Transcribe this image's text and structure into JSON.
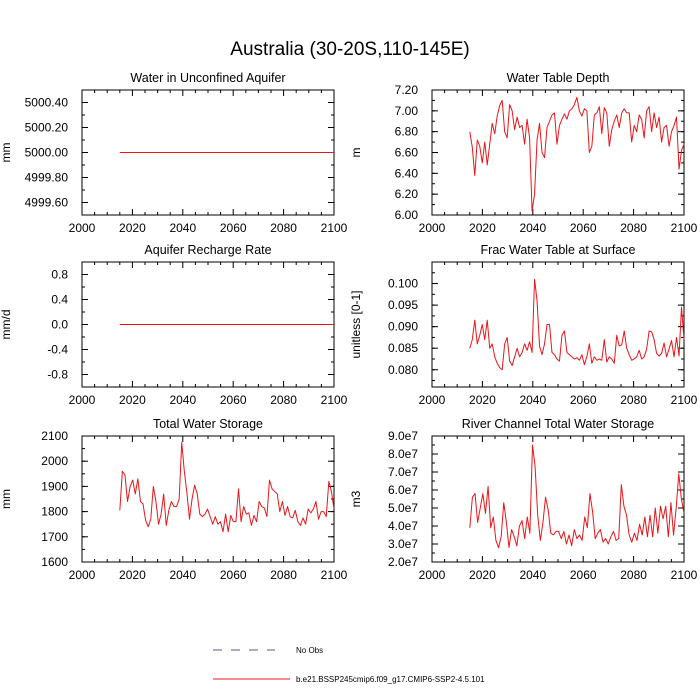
{
  "page_title": "Australia (30-20S,110-145E)",
  "colors": {
    "model": "#e8161b",
    "obs": "#6a4c9c",
    "axis": "#000000"
  },
  "legend": {
    "obs_label": "No Obs",
    "model_label": "b.e21.BSSP245cmip6.f09_g17.CMIP6-SSP2-4.5.101"
  },
  "chart_data": [
    {
      "type": "line",
      "title": "Water in Unconfined Aquifer",
      "ylabel": "mm",
      "xlim": [
        2000,
        2100
      ],
      "ylim": [
        4999.5,
        5000.5
      ],
      "xticks": [
        "2000",
        "2020",
        "2040",
        "2060",
        "2080",
        "2100"
      ],
      "yticks": [
        {
          "v": 4999.6,
          "t": "4999.60"
        },
        {
          "v": 4999.8,
          "t": "4999.80"
        },
        {
          "v": 5000.0,
          "t": "5000.00"
        },
        {
          "v": 5000.2,
          "t": "5000.20"
        },
        {
          "v": 5000.4,
          "t": "5000.40"
        }
      ],
      "series": [
        {
          "start": 2015,
          "values": [
            5000,
            5000,
            5000,
            5000,
            5000,
            5000,
            5000,
            5000,
            5000,
            5000,
            5000,
            5000,
            5000,
            5000,
            5000,
            5000,
            5000,
            5000,
            5000,
            5000,
            5000,
            5000,
            5000,
            5000,
            5000,
            5000,
            5000,
            5000,
            5000,
            5000,
            5000,
            5000,
            5000,
            5000,
            5000,
            5000,
            5000,
            5000,
            5000,
            5000,
            5000,
            5000,
            5000,
            5000,
            5000,
            5000,
            5000,
            5000,
            5000,
            5000,
            5000,
            5000,
            5000,
            5000,
            5000,
            5000,
            5000,
            5000,
            5000,
            5000,
            5000,
            5000,
            5000,
            5000,
            5000,
            5000,
            5000,
            5000,
            5000,
            5000,
            5000,
            5000,
            5000,
            5000,
            5000,
            5000,
            5000,
            5000,
            5000,
            5000,
            5000,
            5000,
            5000,
            5000,
            5000,
            5000
          ]
        }
      ]
    },
    {
      "type": "line",
      "title": "Water Table Depth",
      "ylabel": "m",
      "xlim": [
        2000,
        2100
      ],
      "ylim": [
        6.0,
        7.2
      ],
      "xticks": [
        "2000",
        "2020",
        "2040",
        "2060",
        "2080",
        "2100"
      ],
      "yticks": [
        {
          "v": 6.0,
          "t": "6.00"
        },
        {
          "v": 6.2,
          "t": "6.20"
        },
        {
          "v": 6.4,
          "t": "6.40"
        },
        {
          "v": 6.6,
          "t": "6.60"
        },
        {
          "v": 6.8,
          "t": "6.80"
        },
        {
          "v": 7.0,
          "t": "7.00"
        },
        {
          "v": 7.2,
          "t": "7.20"
        }
      ],
      "series": [
        {
          "start": 2015,
          "values": [
            6.8,
            6.65,
            6.38,
            6.72,
            6.66,
            6.5,
            6.7,
            6.48,
            6.68,
            6.88,
            6.78,
            6.95,
            7.05,
            7.1,
            6.8,
            6.74,
            7.06,
            7.0,
            6.82,
            6.94,
            6.84,
            6.86,
            6.68,
            6.92,
            6.74,
            6.04,
            6.2,
            6.72,
            6.88,
            6.6,
            6.55,
            6.84,
            6.9,
            6.96,
            6.98,
            6.68,
            6.86,
            6.92,
            6.97,
            6.92,
            7.0,
            7.02,
            7.06,
            7.13,
            7.0,
            6.95,
            7.02,
            7.0,
            6.6,
            6.66,
            6.96,
            6.98,
            7.04,
            6.78,
            7.03,
            6.98,
            6.66,
            6.82,
            6.9,
            6.96,
            6.84,
            6.98,
            7.02,
            6.98,
            6.98,
            6.7,
            6.86,
            6.8,
            6.96,
            6.92,
            6.74,
            7.0,
            7.04,
            6.8,
            6.98,
            6.84,
            6.94,
            6.7,
            6.84,
            6.86,
            6.66,
            6.8,
            6.86,
            6.94,
            6.44,
            6.62,
            6.68
          ]
        }
      ]
    },
    {
      "type": "line",
      "title": "Aquifer Recharge Rate",
      "ylabel": "mm/d",
      "xlim": [
        2000,
        2100
      ],
      "ylim": [
        -1.0,
        1.0
      ],
      "xticks": [
        "2000",
        "2020",
        "2040",
        "2060",
        "2080",
        "2100"
      ],
      "yticks": [
        {
          "v": -0.8,
          "t": "-0.8"
        },
        {
          "v": -0.4,
          "t": "-0.4"
        },
        {
          "v": 0.0,
          "t": "0.0"
        },
        {
          "v": 0.4,
          "t": "0.4"
        },
        {
          "v": 0.8,
          "t": "0.8"
        }
      ],
      "series": [
        {
          "start": 2015,
          "values": [
            0,
            0,
            0,
            0,
            0,
            0,
            0,
            0,
            0,
            0,
            0,
            0,
            0,
            0,
            0,
            0,
            0,
            0,
            0,
            0,
            0,
            0,
            0,
            0,
            0,
            0,
            0,
            0,
            0,
            0,
            0,
            0,
            0,
            0,
            0,
            0,
            0,
            0,
            0,
            0,
            0,
            0,
            0,
            0,
            0,
            0,
            0,
            0,
            0,
            0,
            0,
            0,
            0,
            0,
            0,
            0,
            0,
            0,
            0,
            0,
            0,
            0,
            0,
            0,
            0,
            0,
            0,
            0,
            0,
            0,
            0,
            0,
            0,
            0,
            0,
            0,
            0,
            0,
            0,
            0,
            0,
            0,
            0,
            0,
            0,
            0
          ]
        }
      ]
    },
    {
      "type": "line",
      "title": "Frac Water Table at Surface",
      "ylabel": "unitless [0-1]",
      "xlim": [
        2000,
        2100
      ],
      "ylim": [
        0.076,
        0.105
      ],
      "xticks": [
        "2000",
        "2020",
        "2040",
        "2060",
        "2080",
        "2100"
      ],
      "yticks": [
        {
          "v": 0.08,
          "t": "0.080"
        },
        {
          "v": 0.085,
          "t": "0.085"
        },
        {
          "v": 0.09,
          "t": "0.090"
        },
        {
          "v": 0.095,
          "t": "0.095"
        },
        {
          "v": 0.1,
          "t": "0.100"
        }
      ],
      "series": [
        {
          "start": 2015,
          "values": [
            0.085,
            0.087,
            0.0915,
            0.086,
            0.088,
            0.0905,
            0.087,
            0.0915,
            0.085,
            0.086,
            0.083,
            0.0815,
            0.0805,
            0.08,
            0.086,
            0.0875,
            0.082,
            0.081,
            0.083,
            0.085,
            0.083,
            0.084,
            0.086,
            0.0845,
            0.0865,
            0.084,
            0.101,
            0.096,
            0.0855,
            0.0835,
            0.086,
            0.0905,
            0.0905,
            0.084,
            0.0835,
            0.0825,
            0.082,
            0.088,
            0.089,
            0.084,
            0.0835,
            0.083,
            0.0825,
            0.0828,
            0.0822,
            0.0835,
            0.0812,
            0.083,
            0.086,
            0.0815,
            0.083,
            0.0822,
            0.0825,
            0.0822,
            0.087,
            0.0818,
            0.083,
            0.0825,
            0.0815,
            0.088,
            0.0855,
            0.0858,
            0.089,
            0.085,
            0.0835,
            0.0822,
            0.0825,
            0.083,
            0.0845,
            0.0825,
            0.083,
            0.0848,
            0.089,
            0.0888,
            0.087,
            0.0838,
            0.0832,
            0.0838,
            0.0862,
            0.083,
            0.0848,
            0.0868,
            0.083,
            0.0875,
            0.0832,
            0.0945,
            0.087
          ]
        }
      ]
    },
    {
      "type": "line",
      "title": "Total Water Storage",
      "ylabel": "mm",
      "xlim": [
        2000,
        2100
      ],
      "ylim": [
        1600,
        2100
      ],
      "xticks": [
        "2000",
        "2020",
        "2040",
        "2060",
        "2080",
        "2100"
      ],
      "yticks": [
        {
          "v": 1600,
          "t": "1600"
        },
        {
          "v": 1700,
          "t": "1700"
        },
        {
          "v": 1800,
          "t": "1800"
        },
        {
          "v": 1900,
          "t": "1900"
        },
        {
          "v": 2000,
          "t": "2000"
        },
        {
          "v": 2100,
          "t": "2100"
        }
      ],
      "series": [
        {
          "start": 2015,
          "values": [
            1805,
            1960,
            1945,
            1840,
            1900,
            1925,
            1870,
            1930,
            1840,
            1830,
            1765,
            1740,
            1770,
            1900,
            1840,
            1750,
            1790,
            1870,
            1745,
            1805,
            1840,
            1820,
            1820,
            1850,
            2075,
            1960,
            1875,
            1770,
            1850,
            1905,
            1870,
            1790,
            1780,
            1790,
            1810,
            1780,
            1750,
            1780,
            1750,
            1760,
            1720,
            1790,
            1720,
            1785,
            1760,
            1760,
            1890,
            1760,
            1820,
            1790,
            1795,
            1745,
            1785,
            1760,
            1840,
            1820,
            1815,
            1780,
            1925,
            1890,
            1880,
            1870,
            1800,
            1840,
            1785,
            1820,
            1780,
            1775,
            1805,
            1760,
            1745,
            1775,
            1750,
            1810,
            1795,
            1810,
            1840,
            1770,
            1800,
            1800,
            1780,
            1920,
            1880,
            1810
          ]
        }
      ]
    },
    {
      "type": "line",
      "title": "River Channel Total Water Storage",
      "ylabel": "m3",
      "xlim": [
        2000,
        2100
      ],
      "ylim": [
        20000000.0,
        90000000.0
      ],
      "xticks": [
        "2000",
        "2020",
        "2040",
        "2060",
        "2080",
        "2100"
      ],
      "yticks": [
        {
          "v": 20000000.0,
          "t": "2.0e7"
        },
        {
          "v": 30000000.0,
          "t": "3.0e7"
        },
        {
          "v": 40000000.0,
          "t": "4.0e7"
        },
        {
          "v": 50000000.0,
          "t": "5.0e7"
        },
        {
          "v": 60000000.0,
          "t": "6.0e7"
        },
        {
          "v": 70000000.0,
          "t": "7.0e7"
        },
        {
          "v": 80000000.0,
          "t": "8.0e7"
        },
        {
          "v": 90000000.0,
          "t": "9.0e7"
        }
      ],
      "series": [
        {
          "start": 2015,
          "values": [
            39000000.0,
            56000000.0,
            58000000.0,
            42000000.0,
            50000000.0,
            58000000.0,
            47000000.0,
            62000000.0,
            39000000.0,
            45000000.0,
            32000000.0,
            28000000.0,
            34000000.0,
            53000000.0,
            42000000.0,
            28000000.0,
            38000000.0,
            34000000.0,
            29000000.0,
            40000000.0,
            43000000.0,
            33000000.0,
            45000000.0,
            36000000.0,
            85000000.0,
            73000000.0,
            46000000.0,
            32000000.0,
            42000000.0,
            56000000.0,
            49000000.0,
            36000000.0,
            35000000.0,
            37000000.0,
            37000000.0,
            33000000.0,
            37000000.0,
            30000000.0,
            35000000.0,
            29000000.0,
            38000000.0,
            33000000.0,
            35000000.0,
            32000000.0,
            45000000.0,
            39000000.0,
            58000000.0,
            48000000.0,
            33000000.0,
            36000000.0,
            38000000.0,
            31000000.0,
            33000000.0,
            30000000.0,
            34000000.0,
            37000000.0,
            32000000.0,
            33000000.0,
            63000000.0,
            51000000.0,
            46000000.0,
            35000000.0,
            31000000.0,
            36000000.0,
            32000000.0,
            41000000.0,
            35000000.0,
            45000000.0,
            34000000.0,
            46000000.0,
            34000000.0,
            50000000.0,
            36000000.0,
            51000000.0,
            44000000.0,
            51000000.0,
            34000000.0,
            53000000.0,
            35000000.0,
            50000000.0,
            69000000.0,
            55000000.0,
            47000000.0
          ]
        }
      ]
    }
  ]
}
